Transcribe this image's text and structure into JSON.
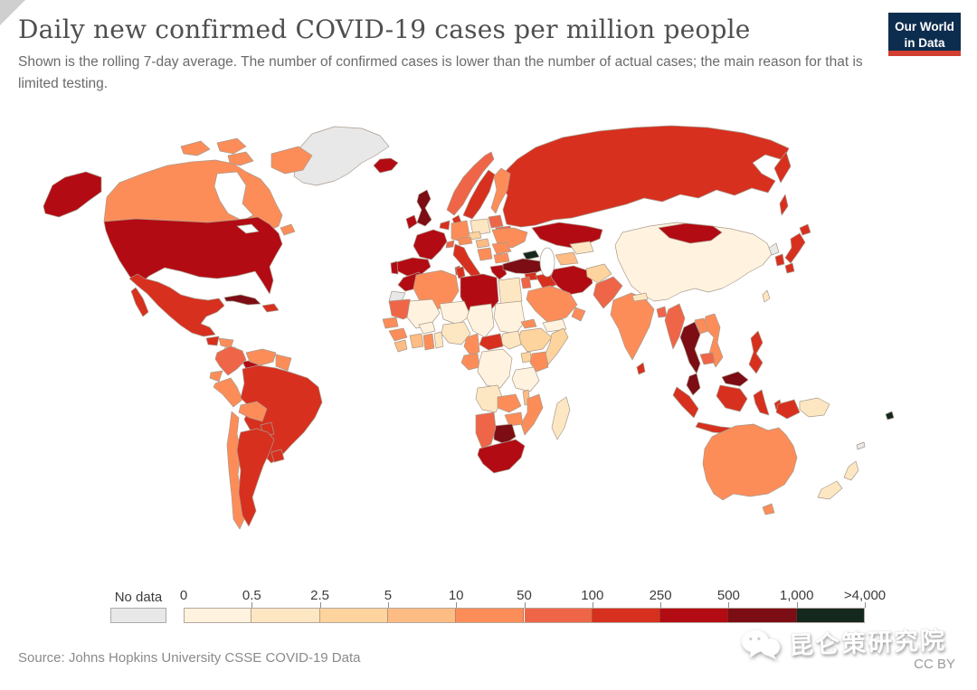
{
  "header": {
    "title": "Daily new confirmed COVID-19 cases per million people",
    "subtitle": "Shown is the rolling 7-day average. The number of confirmed cases is lower than the number of actual cases; the main reason for that is limited testing."
  },
  "logo": {
    "line1": "Our World",
    "line2": "in Data",
    "bg_color": "#0d2d4e",
    "bar_color": "#d23e32"
  },
  "legend": {
    "no_data_label": "No data",
    "ticks": [
      "0",
      "0.5",
      "2.5",
      "5",
      "10",
      "50",
      "100",
      "250",
      "500",
      "1,000",
      ">4,000"
    ]
  },
  "footer": {
    "source": "Source: Johns Hopkins University CSSE COVID-19 Data",
    "license": "CC BY"
  },
  "watermark": {
    "text": "昆仑策研究院"
  },
  "chart_data": {
    "type": "choropleth",
    "title": "Daily new confirmed COVID-19 cases per million people",
    "unit": "daily new confirmed cases per million people, 7-day rolling average",
    "no_data_color": "#e8e8e8",
    "legend_position": "bottom",
    "bins": [
      {
        "label": "0–0.5",
        "color": "#fff3df"
      },
      {
        "label": "0.5–2.5",
        "color": "#fde7c3"
      },
      {
        "label": "2.5–5",
        "color": "#fdd49e"
      },
      {
        "label": "5–10",
        "color": "#fdbc84"
      },
      {
        "label": "10–50",
        "color": "#fc8d59"
      },
      {
        "label": "50–100",
        "color": "#ef6548"
      },
      {
        "label": "100–250",
        "color": "#d7301f"
      },
      {
        "label": "250–500",
        "color": "#b30b13"
      },
      {
        "label": "500–1,000",
        "color": "#7c0d14"
      },
      {
        "label": "1,000–>4,000",
        "color": "#15281e"
      }
    ],
    "countries": {
      "greenland": "no-data",
      "western-sahara": "no-data",
      "north-korea": "no-data",
      "new-caledonia": "no-data",
      "china": 0,
      "mali": 0,
      "niger": 0,
      "chad": 0,
      "sudan": 0,
      "burkina-faso": 0,
      "tanzania": 0,
      "dr-congo": 0,
      "yemen": 0,
      "poland": 1,
      "uzbekistan": 1,
      "nepal": 1,
      "papua-new-guinea": 1,
      "new-zealand": 1,
      "egypt": 1,
      "nigeria": 1,
      "angola": 1,
      "madagascar": 1,
      "south-sudan": 1,
      "togo-benin": 1,
      "taiwan": 1,
      "czechia": 2,
      "afghanistan": 2,
      "ethiopia": 2,
      "somalia": 2,
      "uganda": 2,
      "hungary": 3,
      "sierra-leone-liberia": 3,
      "ivory-coast": 3,
      "malawi": 3,
      "nicaragua": 3,
      "turkmenistan": 3,
      "canada": 4,
      "venezuela": 4,
      "guyana-suriname": 4,
      "ecuador": 4,
      "peru": 4,
      "bolivia": 4,
      "chile": 4,
      "honduras": 4,
      "finland": 4,
      "germany": 4,
      "austria": 4,
      "ukraine": 4,
      "romania": 4,
      "bulgaria": 4,
      "serbia-balkans": 4,
      "algeria": 4,
      "senegal": 4,
      "guinea": 4,
      "ghana": 4,
      "cameroon": 4,
      "gabon-congo": 4,
      "eritrea": 4,
      "kenya": 4,
      "zambia": 4,
      "zimbabwe": 4,
      "mozambique": 4,
      "saudi-arabia": 4,
      "oman": 4,
      "india": 4,
      "laos": 4,
      "vietnam": 4,
      "australia": 4,
      "colombia": 5,
      "norway": 5,
      "baltic-states": 5,
      "belarus": 5,
      "switzerland": 5,
      "israel-jordan": 5,
      "mauritania": 5,
      "namibia": 5,
      "myanmar": 5,
      "bangladesh": 5,
      "cambodia": 5,
      "pakistan": 5,
      "mexico": 6,
      "guatemala": 6,
      "hispaniola": 6,
      "brazil": 6,
      "paraguay": 6,
      "argentina": 6,
      "uruguay": 6,
      "sweden": 6,
      "denmark": 6,
      "benelux": 6,
      "italy": 6,
      "tunisia": 6,
      "central-african-republic": 6,
      "syria": 6,
      "iraq": 6,
      "russia": 6,
      "south-korea": 6,
      "japan": 6,
      "indonesia": 6,
      "philippines": 6,
      "sri-lanka": 6,
      "united-states": 7,
      "costa-rica": 7,
      "panama": 7,
      "iceland": 7,
      "ireland": 7,
      "france": 7,
      "spain": 7,
      "portugal": 7,
      "greece": 7,
      "morocco": 7,
      "libya": 7,
      "iran": 7,
      "kazakhstan": 7,
      "mongolia": 7,
      "south-africa": 7,
      "united-kingdom": 8,
      "cuba": 8,
      "turkey": 8,
      "thailand": 8,
      "malaysia": 8,
      "botswana": 8,
      "georgia-caucasus": 9,
      "fiji": 9
    }
  }
}
